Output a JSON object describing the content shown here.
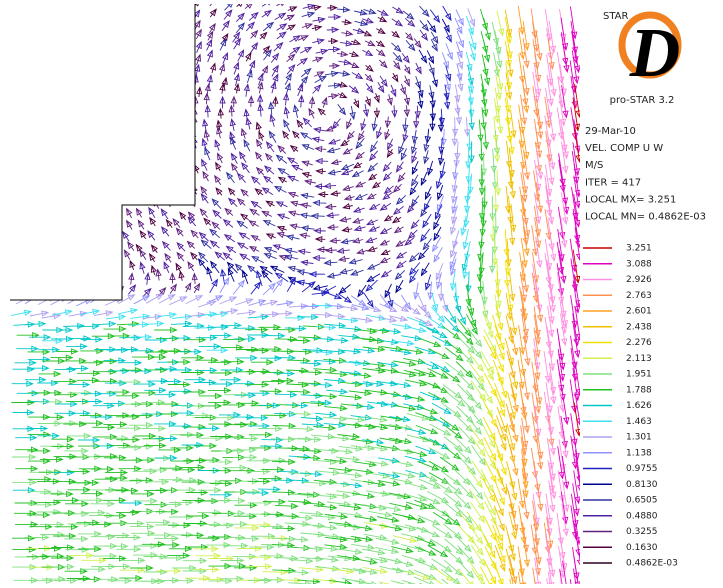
{
  "logo": {
    "brand": "STAR",
    "letter": "D",
    "product": "pro-STAR 3.2"
  },
  "info": [
    "29-Mar-10",
    "VEL. COMP  U W",
    "M/S",
    "ITER =    417",
    "LOCAL MX=  3.251",
    "LOCAL MN= 0.4862E-03"
  ],
  "legend": [
    {
      "label": "3.251",
      "color": "#cc0000"
    },
    {
      "label": "3.088",
      "color": "#e000c0"
    },
    {
      "label": "2.926",
      "color": "#ff90e0"
    },
    {
      "label": "2.763",
      "color": "#ff9050"
    },
    {
      "label": "2.601",
      "color": "#ffa020"
    },
    {
      "label": "2.438",
      "color": "#f0c000"
    },
    {
      "label": "2.276",
      "color": "#f0e000"
    },
    {
      "label": "2.113",
      "color": "#d0f050"
    },
    {
      "label": "1.951",
      "color": "#80e080"
    },
    {
      "label": "1.788",
      "color": "#20c020"
    },
    {
      "label": "1.626",
      "color": "#00c8c8"
    },
    {
      "label": "1.463",
      "color": "#40e0f0"
    },
    {
      "label": "1.301",
      "color": "#b0a0f0"
    },
    {
      "label": "1.138",
      "color": "#9090ff"
    },
    {
      "label": "0.9755",
      "color": "#2020c0"
    },
    {
      "label": "0.8130",
      "color": "#000090"
    },
    {
      "label": "0.6505",
      "color": "#3030a0"
    },
    {
      "label": "0.4880",
      "color": "#5020a0"
    },
    {
      "label": "0.3255",
      "color": "#602080"
    },
    {
      "label": "0.1630",
      "color": "#500040"
    },
    {
      "label": "0.4862E-03",
      "color": "#300020"
    }
  ]
}
